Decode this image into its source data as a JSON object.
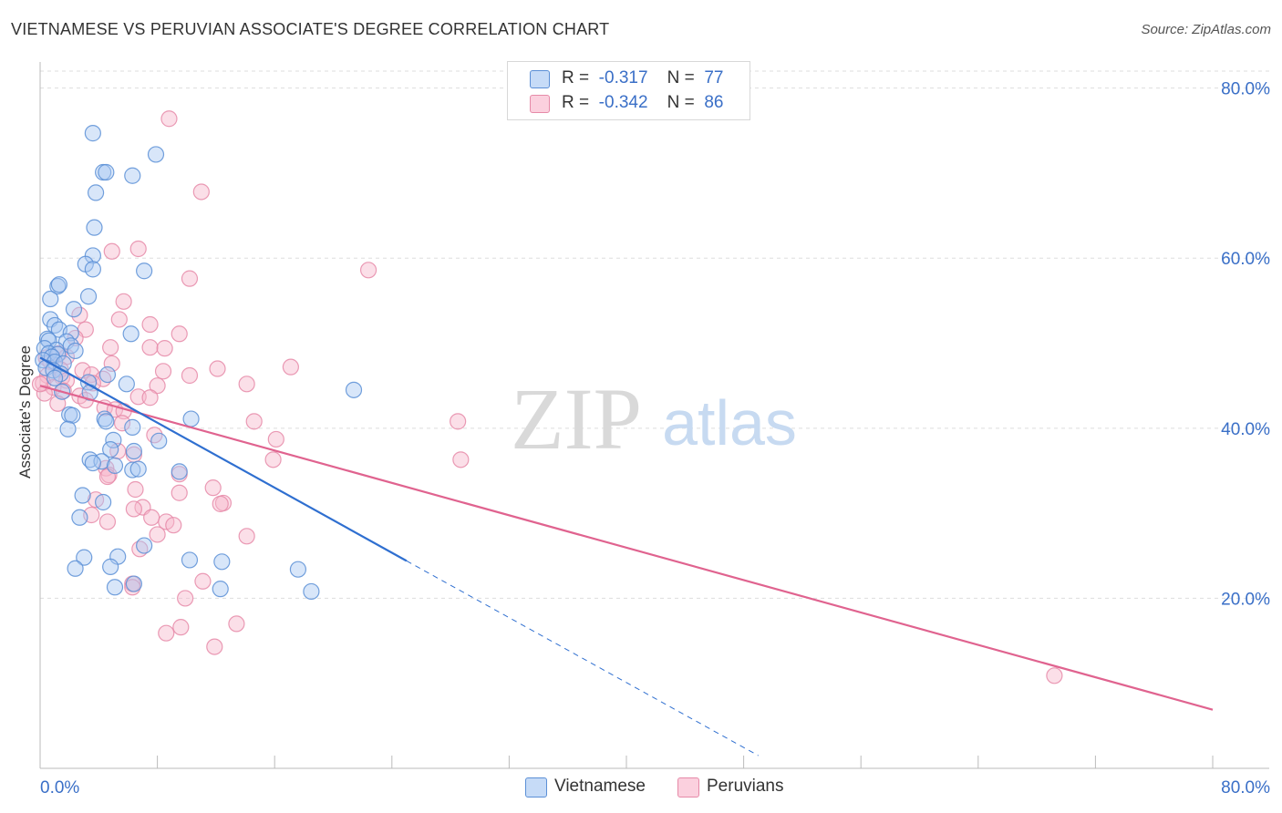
{
  "title": "VIETNAMESE VS PERUVIAN ASSOCIATE'S DEGREE CORRELATION CHART",
  "source": "Source: ZipAtlas.com",
  "watermark": {
    "zip": "ZIP",
    "atlas": "atlas"
  },
  "legend": {
    "rows": [
      {
        "r_label": "R =",
        "r_value": "-0.317",
        "n_label": "N =",
        "n_value": "77",
        "color": "#a9c8f2"
      },
      {
        "r_label": "R =",
        "r_value": "-0.342",
        "n_label": "N =",
        "n_value": "86",
        "color": "#f6b9cc"
      }
    ]
  },
  "colors": {
    "blue_fill": "#a9c8f2",
    "blue_stroke": "#5b8fd6",
    "blue_line": "#2f6fd0",
    "pink_fill": "#f6b9cc",
    "pink_stroke": "#e68aa8",
    "pink_line": "#e0638f",
    "grid": "#dddddd",
    "tick_text": "#3a6fc7"
  },
  "chart_data": {
    "type": "scatter",
    "title": "VIETNAMESE VS PERUVIAN ASSOCIATE'S DEGREE CORRELATION CHART",
    "xlabel": "",
    "ylabel": "Associate's Degree",
    "xlim": [
      0,
      80
    ],
    "ylim": [
      0,
      82
    ],
    "x_tick_labels": [
      "0.0%",
      "80.0%"
    ],
    "y_ticks": [
      20,
      40,
      60,
      80
    ],
    "y_tick_labels": [
      "20.0%",
      "40.0%",
      "60.0%",
      "80.0%"
    ],
    "series": [
      {
        "name": "Vietnamese",
        "r": -0.317,
        "n": 77,
        "trend": {
          "x0": 0,
          "y0": 48.3,
          "x1": 25,
          "y1": 24.4,
          "dash_to_x": 49,
          "dash_to_y": 1.5
        },
        "points": [
          [
            3.6,
            74.7
          ],
          [
            4.3,
            70.1
          ],
          [
            4.5,
            70.1
          ],
          [
            7.9,
            72.2
          ],
          [
            6.3,
            69.7
          ],
          [
            3.8,
            67.7
          ],
          [
            3.7,
            63.6
          ],
          [
            3.6,
            60.3
          ],
          [
            3.1,
            59.3
          ],
          [
            3.6,
            58.7
          ],
          [
            7.1,
            58.5
          ],
          [
            1.2,
            56.7
          ],
          [
            1.3,
            56.9
          ],
          [
            3.3,
            55.5
          ],
          [
            0.7,
            55.2
          ],
          [
            2.3,
            54.0
          ],
          [
            0.7,
            52.8
          ],
          [
            1.0,
            52.1
          ],
          [
            1.3,
            51.6
          ],
          [
            2.1,
            51.2
          ],
          [
            6.2,
            51.1
          ],
          [
            0.5,
            50.5
          ],
          [
            0.6,
            50.3
          ],
          [
            1.8,
            50.2
          ],
          [
            2.1,
            49.7
          ],
          [
            0.3,
            49.4
          ],
          [
            1.1,
            49.2
          ],
          [
            2.4,
            49.1
          ],
          [
            0.6,
            48.8
          ],
          [
            1.2,
            48.7
          ],
          [
            0.8,
            48.4
          ],
          [
            0.2,
            48.0
          ],
          [
            1.0,
            47.8
          ],
          [
            1.6,
            47.6
          ],
          [
            0.4,
            47.1
          ],
          [
            0.9,
            46.8
          ],
          [
            1.4,
            46.4
          ],
          [
            4.6,
            46.3
          ],
          [
            1.0,
            45.9
          ],
          [
            3.3,
            45.4
          ],
          [
            5.9,
            45.2
          ],
          [
            21.4,
            44.5
          ],
          [
            1.5,
            44.3
          ],
          [
            3.4,
            44.2
          ],
          [
            2.0,
            41.6
          ],
          [
            2.2,
            41.5
          ],
          [
            4.4,
            41.1
          ],
          [
            10.3,
            41.1
          ],
          [
            4.5,
            40.8
          ],
          [
            6.3,
            40.1
          ],
          [
            1.9,
            39.9
          ],
          [
            5.0,
            38.6
          ],
          [
            8.1,
            38.5
          ],
          [
            4.8,
            37.5
          ],
          [
            6.4,
            37.3
          ],
          [
            3.4,
            36.3
          ],
          [
            4.2,
            36.1
          ],
          [
            3.6,
            35.9
          ],
          [
            5.1,
            35.6
          ],
          [
            6.3,
            35.1
          ],
          [
            6.7,
            35.2
          ],
          [
            9.5,
            34.9
          ],
          [
            2.9,
            32.1
          ],
          [
            4.3,
            31.3
          ],
          [
            2.7,
            29.5
          ],
          [
            7.1,
            26.2
          ],
          [
            3.0,
            24.8
          ],
          [
            10.2,
            24.5
          ],
          [
            12.4,
            24.3
          ],
          [
            5.3,
            24.9
          ],
          [
            2.4,
            23.5
          ],
          [
            4.8,
            23.7
          ],
          [
            17.6,
            23.4
          ],
          [
            6.4,
            21.7
          ],
          [
            5.1,
            21.3
          ],
          [
            12.3,
            21.1
          ],
          [
            18.5,
            20.8
          ]
        ]
      },
      {
        "name": "Peruvians",
        "r": -0.342,
        "n": 86,
        "trend": {
          "x0": 0,
          "y0": 45.0,
          "x1": 80,
          "y1": 6.9
        },
        "points": [
          [
            8.8,
            76.4
          ],
          [
            11.0,
            67.8
          ],
          [
            6.7,
            61.1
          ],
          [
            4.9,
            60.8
          ],
          [
            10.2,
            57.6
          ],
          [
            22.4,
            58.6
          ],
          [
            5.7,
            54.9
          ],
          [
            2.7,
            53.3
          ],
          [
            5.4,
            52.8
          ],
          [
            7.5,
            52.2
          ],
          [
            3.1,
            51.6
          ],
          [
            9.5,
            51.1
          ],
          [
            2.4,
            50.6
          ],
          [
            4.8,
            49.5
          ],
          [
            7.5,
            49.5
          ],
          [
            8.5,
            49.4
          ],
          [
            1.3,
            48.8
          ],
          [
            0.4,
            48.3
          ],
          [
            1.8,
            48.4
          ],
          [
            0.7,
            47.8
          ],
          [
            4.9,
            47.6
          ],
          [
            17.1,
            47.2
          ],
          [
            12.1,
            47.0
          ],
          [
            1.4,
            46.9
          ],
          [
            2.9,
            46.8
          ],
          [
            8.4,
            46.7
          ],
          [
            3.5,
            46.3
          ],
          [
            0.5,
            46.2
          ],
          [
            10.2,
            46.2
          ],
          [
            1.5,
            46.0
          ],
          [
            4.3,
            45.8
          ],
          [
            1.8,
            45.6
          ],
          [
            0.2,
            45.3
          ],
          [
            3.6,
            45.3
          ],
          [
            14.1,
            45.2
          ],
          [
            8.0,
            45.0
          ],
          [
            0.9,
            44.8
          ],
          [
            1.6,
            44.4
          ],
          [
            0.3,
            44.1
          ],
          [
            2.7,
            43.8
          ],
          [
            6.7,
            43.7
          ],
          [
            7.5,
            43.6
          ],
          [
            3.1,
            43.3
          ],
          [
            1.2,
            42.9
          ],
          [
            4.4,
            42.4
          ],
          [
            5.1,
            42.2
          ],
          [
            5.7,
            42.0
          ],
          [
            14.6,
            40.8
          ],
          [
            28.5,
            40.8
          ],
          [
            5.6,
            40.6
          ],
          [
            7.8,
            39.2
          ],
          [
            16.1,
            38.7
          ],
          [
            5.3,
            37.3
          ],
          [
            6.4,
            36.9
          ],
          [
            15.9,
            36.3
          ],
          [
            28.7,
            36.3
          ],
          [
            4.5,
            35.3
          ],
          [
            4.7,
            34.5
          ],
          [
            9.5,
            34.6
          ],
          [
            4.6,
            34.3
          ],
          [
            11.8,
            33.0
          ],
          [
            6.5,
            32.8
          ],
          [
            9.5,
            32.4
          ],
          [
            3.8,
            31.6
          ],
          [
            12.5,
            31.2
          ],
          [
            12.3,
            31.1
          ],
          [
            7.0,
            30.7
          ],
          [
            6.4,
            30.5
          ],
          [
            3.5,
            29.8
          ],
          [
            7.6,
            29.5
          ],
          [
            8.6,
            29.0
          ],
          [
            4.6,
            29.0
          ],
          [
            9.1,
            28.6
          ],
          [
            8.0,
            27.5
          ],
          [
            14.1,
            27.3
          ],
          [
            6.8,
            25.8
          ],
          [
            11.1,
            22.0
          ],
          [
            6.3,
            21.7
          ],
          [
            6.3,
            21.3
          ],
          [
            9.9,
            20.0
          ],
          [
            13.4,
            17.0
          ],
          [
            9.6,
            16.6
          ],
          [
            8.6,
            15.9
          ],
          [
            11.9,
            14.3
          ],
          [
            69.2,
            10.9
          ],
          [
            0.0,
            45.2
          ]
        ]
      }
    ]
  }
}
